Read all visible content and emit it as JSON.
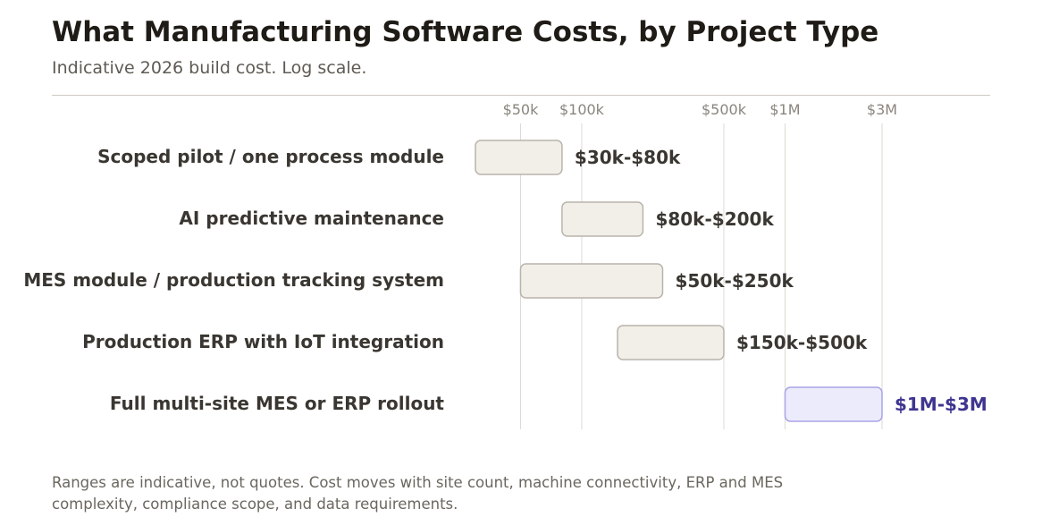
{
  "title": "What Manufacturing Software Costs, by Project Type",
  "subtitle": "Indicative 2026 build cost. Log scale.",
  "footnote": {
    "line1": "Ranges are indicative, not quotes. Cost moves with site count, machine connectivity, ERP and MES",
    "line2": "complexity, compliance scope, and data requirements."
  },
  "colors": {
    "bar_fill": "#f1efe8",
    "bar_stroke": "#b9b4ab",
    "highlight_fill": "#ecebfc",
    "highlight_stroke": "#a9a4e6",
    "label_text": "#3a3631",
    "highlight_text": "#3e3590",
    "grid": "#dedad3",
    "tick_text": "#8a857d"
  },
  "chart_data": {
    "type": "range-bar",
    "scale": "log",
    "xlim": [
      30000,
      3000000
    ],
    "x_ticks": [
      {
        "value": 50000,
        "label": "$50k"
      },
      {
        "value": 100000,
        "label": "$100k"
      },
      {
        "value": 500000,
        "label": "$500k"
      },
      {
        "value": 1000000,
        "label": "$1M"
      },
      {
        "value": 3000000,
        "label": "$3M"
      }
    ],
    "grid": true,
    "rows": [
      {
        "category": "Scoped pilot / one process module",
        "low": 30000,
        "high": 80000,
        "label": "$30k-$80k",
        "highlight": false
      },
      {
        "category": "AI predictive maintenance",
        "low": 80000,
        "high": 200000,
        "label": "$80k-$200k",
        "highlight": false
      },
      {
        "category": "MES module / production tracking system",
        "low": 50000,
        "high": 250000,
        "label": "$50k-$250k",
        "highlight": false
      },
      {
        "category": "Production ERP with IoT integration",
        "low": 150000,
        "high": 500000,
        "label": "$150k-$500k",
        "highlight": false
      },
      {
        "category": "Full multi-site MES or ERP rollout",
        "low": 1000000,
        "high": 3000000,
        "label": "$1M-$3M",
        "highlight": true
      }
    ]
  }
}
